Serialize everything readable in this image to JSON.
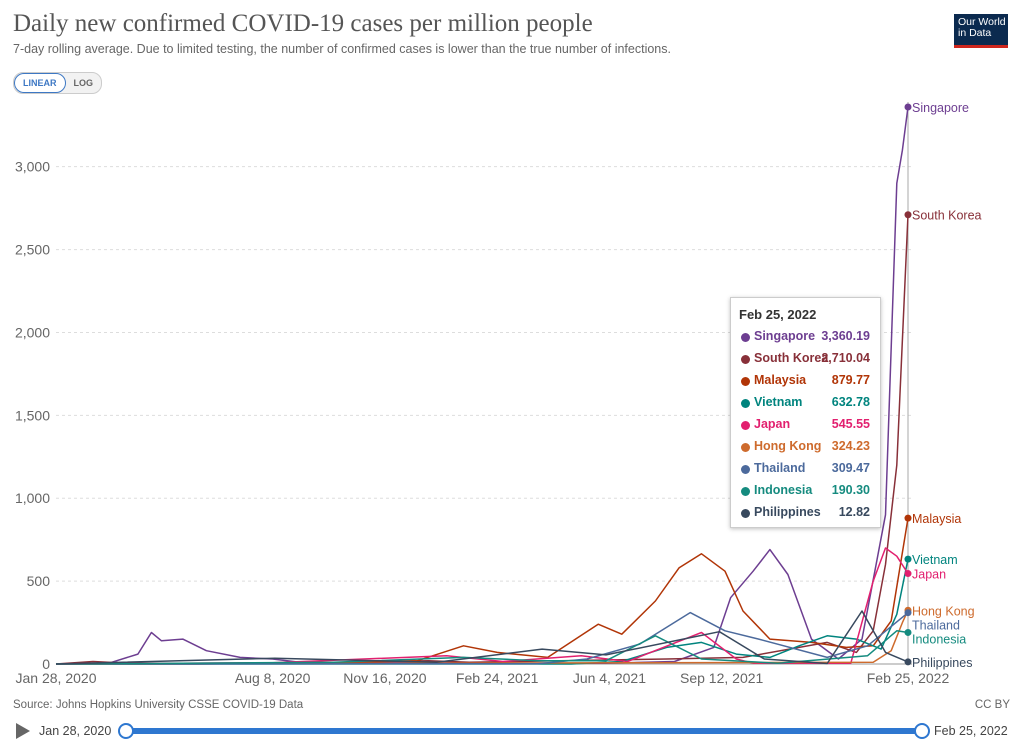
{
  "title": "Daily new confirmed COVID-19 cases per million people",
  "subtitle": "7-day rolling average. Due to limited testing, the number of confirmed cases is lower than the true number of infections.",
  "logo": {
    "line1": "Our World",
    "line2": "in Data"
  },
  "controls": {
    "linear_label": "LINEAR",
    "log_label": "LOG",
    "active": "LINEAR"
  },
  "source": "Source: Johns Hopkins University CSSE COVID-19 Data",
  "license": "CC BY",
  "timeline": {
    "start": "Jan 28, 2020",
    "end": "Feb 25, 2022",
    "icon": "play-icon"
  },
  "tooltip": {
    "date": "Feb 25, 2022",
    "rows": [
      {
        "name": "Singapore",
        "value": "3,360.19"
      },
      {
        "name": "South Korea",
        "value": "2,710.04"
      },
      {
        "name": "Malaysia",
        "value": "879.77"
      },
      {
        "name": "Vietnam",
        "value": "632.78"
      },
      {
        "name": "Japan",
        "value": "545.55"
      },
      {
        "name": "Hong Kong",
        "value": "324.23"
      },
      {
        "name": "Thailand",
        "value": "309.47"
      },
      {
        "name": "Indonesia",
        "value": "190.30"
      },
      {
        "name": "Philippines",
        "value": "12.82"
      }
    ]
  },
  "chart_data": {
    "type": "line",
    "title": "Daily new confirmed COVID-19 cases per million people",
    "ylim": [
      0,
      3360
    ],
    "yticks": [
      0,
      500,
      1000,
      1500,
      2000,
      2500,
      3000
    ],
    "ytick_labels": [
      "0",
      "500",
      "1,000",
      "1,500",
      "2,000",
      "2,500",
      "3,000"
    ],
    "x_start": "2020-01-28",
    "x_end": "2022-02-25",
    "xticks": [
      "2020-01-28",
      "2020-08-08",
      "2020-11-16",
      "2021-02-24",
      "2021-06-04",
      "2021-09-12",
      "2022-02-25"
    ],
    "xtick_labels": [
      "Jan 28, 2020",
      "Aug 8, 2020",
      "Nov 16, 2020",
      "Feb 24, 2021",
      "Jun 4, 2021",
      "Sep 12, 2021",
      "Feb 25, 2022"
    ],
    "grid": true,
    "legend": "line-end labels",
    "series": [
      {
        "name": "Singapore",
        "color": "#6d3e91",
        "points": [
          [
            "2020-01-28",
            0
          ],
          [
            "2020-03-15",
            5
          ],
          [
            "2020-04-10",
            60
          ],
          [
            "2020-04-22",
            190
          ],
          [
            "2020-05-01",
            140
          ],
          [
            "2020-05-20",
            150
          ],
          [
            "2020-06-10",
            80
          ],
          [
            "2020-07-10",
            40
          ],
          [
            "2020-08-08",
            30
          ],
          [
            "2020-09-01",
            10
          ],
          [
            "2021-05-01",
            5
          ],
          [
            "2021-06-01",
            5
          ],
          [
            "2021-08-01",
            15
          ],
          [
            "2021-09-05",
            100
          ],
          [
            "2021-09-20",
            400
          ],
          [
            "2021-10-10",
            560
          ],
          [
            "2021-10-25",
            690
          ],
          [
            "2021-11-10",
            540
          ],
          [
            "2021-12-01",
            150
          ],
          [
            "2021-12-25",
            30
          ],
          [
            "2022-01-15",
            150
          ],
          [
            "2022-02-05",
            900
          ],
          [
            "2022-02-15",
            2900
          ],
          [
            "2022-02-20",
            3100
          ],
          [
            "2022-02-25",
            3360.19
          ]
        ]
      },
      {
        "name": "South Korea",
        "color": "#883039",
        "points": [
          [
            "2020-01-28",
            0
          ],
          [
            "2020-03-01",
            15
          ],
          [
            "2020-04-01",
            5
          ],
          [
            "2020-08-20",
            5
          ],
          [
            "2020-12-25",
            20
          ],
          [
            "2021-01-30",
            10
          ],
          [
            "2021-07-25",
            30
          ],
          [
            "2021-10-01",
            40
          ],
          [
            "2021-12-15",
            130
          ],
          [
            "2022-01-10",
            70
          ],
          [
            "2022-01-25",
            200
          ],
          [
            "2022-02-05",
            600
          ],
          [
            "2022-02-15",
            1200
          ],
          [
            "2022-02-25",
            2710.04
          ]
        ]
      },
      {
        "name": "Malaysia",
        "color": "#b13507",
        "points": [
          [
            "2020-01-28",
            0
          ],
          [
            "2020-06-01",
            0
          ],
          [
            "2020-10-15",
            10
          ],
          [
            "2020-12-15",
            20
          ],
          [
            "2021-01-25",
            110
          ],
          [
            "2021-02-24",
            70
          ],
          [
            "2021-04-10",
            40
          ],
          [
            "2021-05-25",
            240
          ],
          [
            "2021-06-15",
            180
          ],
          [
            "2021-07-15",
            380
          ],
          [
            "2021-08-05",
            580
          ],
          [
            "2021-08-25",
            665
          ],
          [
            "2021-09-15",
            560
          ],
          [
            "2021-10-01",
            320
          ],
          [
            "2021-10-25",
            150
          ],
          [
            "2021-12-01",
            130
          ],
          [
            "2022-01-01",
            100
          ],
          [
            "2022-01-25",
            110
          ],
          [
            "2022-02-10",
            260
          ],
          [
            "2022-02-25",
            879.77
          ]
        ]
      },
      {
        "name": "Vietnam",
        "color": "#00847e",
        "points": [
          [
            "2020-01-28",
            0
          ],
          [
            "2021-05-01",
            0
          ],
          [
            "2021-06-15",
            15
          ],
          [
            "2021-07-25",
            100
          ],
          [
            "2021-08-25",
            130
          ],
          [
            "2021-09-25",
            60
          ],
          [
            "2021-10-25",
            40
          ],
          [
            "2021-11-20",
            110
          ],
          [
            "2021-12-15",
            170
          ],
          [
            "2022-01-10",
            150
          ],
          [
            "2022-02-01",
            90
          ],
          [
            "2022-02-15",
            300
          ],
          [
            "2022-02-25",
            632.78
          ]
        ]
      },
      {
        "name": "Japan",
        "color": "#e2206f",
        "points": [
          [
            "2020-01-28",
            0
          ],
          [
            "2020-08-08",
            8
          ],
          [
            "2021-01-10",
            50
          ],
          [
            "2021-03-01",
            15
          ],
          [
            "2021-05-10",
            50
          ],
          [
            "2021-06-20",
            15
          ],
          [
            "2021-08-25",
            190
          ],
          [
            "2021-09-25",
            30
          ],
          [
            "2021-10-10",
            5
          ],
          [
            "2022-01-05",
            5
          ],
          [
            "2022-01-25",
            500
          ],
          [
            "2022-02-05",
            700
          ],
          [
            "2022-02-15",
            650
          ],
          [
            "2022-02-25",
            545.55
          ]
        ]
      },
      {
        "name": "Hong Kong",
        "color": "#ce6b2d",
        "points": [
          [
            "2020-01-28",
            0
          ],
          [
            "2022-01-25",
            10
          ],
          [
            "2022-02-10",
            80
          ],
          [
            "2022-02-20",
            250
          ],
          [
            "2022-02-25",
            324.23
          ]
        ]
      },
      {
        "name": "Thailand",
        "color": "#4c6a9c",
        "points": [
          [
            "2020-01-28",
            0
          ],
          [
            "2021-04-01",
            2
          ],
          [
            "2021-05-15",
            30
          ],
          [
            "2021-07-01",
            120
          ],
          [
            "2021-08-15",
            310
          ],
          [
            "2021-09-15",
            200
          ],
          [
            "2021-10-15",
            150
          ],
          [
            "2021-12-15",
            40
          ],
          [
            "2022-01-20",
            110
          ],
          [
            "2022-02-25",
            309.47
          ]
        ]
      },
      {
        "name": "Indonesia",
        "color": "#158b7f",
        "points": [
          [
            "2020-01-28",
            0
          ],
          [
            "2020-10-01",
            10
          ],
          [
            "2021-01-25",
            40
          ],
          [
            "2021-04-01",
            20
          ],
          [
            "2021-06-01",
            20
          ],
          [
            "2021-07-15",
            170
          ],
          [
            "2021-08-25",
            30
          ],
          [
            "2021-11-01",
            5
          ],
          [
            "2022-01-20",
            50
          ],
          [
            "2022-02-15",
            200
          ],
          [
            "2022-02-25",
            190.3
          ]
        ]
      },
      {
        "name": "Philippines",
        "color": "#38495e",
        "points": [
          [
            "2020-01-28",
            0
          ],
          [
            "2020-08-10",
            35
          ],
          [
            "2021-01-01",
            10
          ],
          [
            "2021-04-05",
            90
          ],
          [
            "2021-06-01",
            55
          ],
          [
            "2021-09-10",
            195
          ],
          [
            "2021-10-20",
            30
          ],
          [
            "2021-12-15",
            3
          ],
          [
            "2022-01-15",
            320
          ],
          [
            "2022-02-05",
            70
          ],
          [
            "2022-02-25",
            12.82
          ]
        ]
      }
    ]
  }
}
